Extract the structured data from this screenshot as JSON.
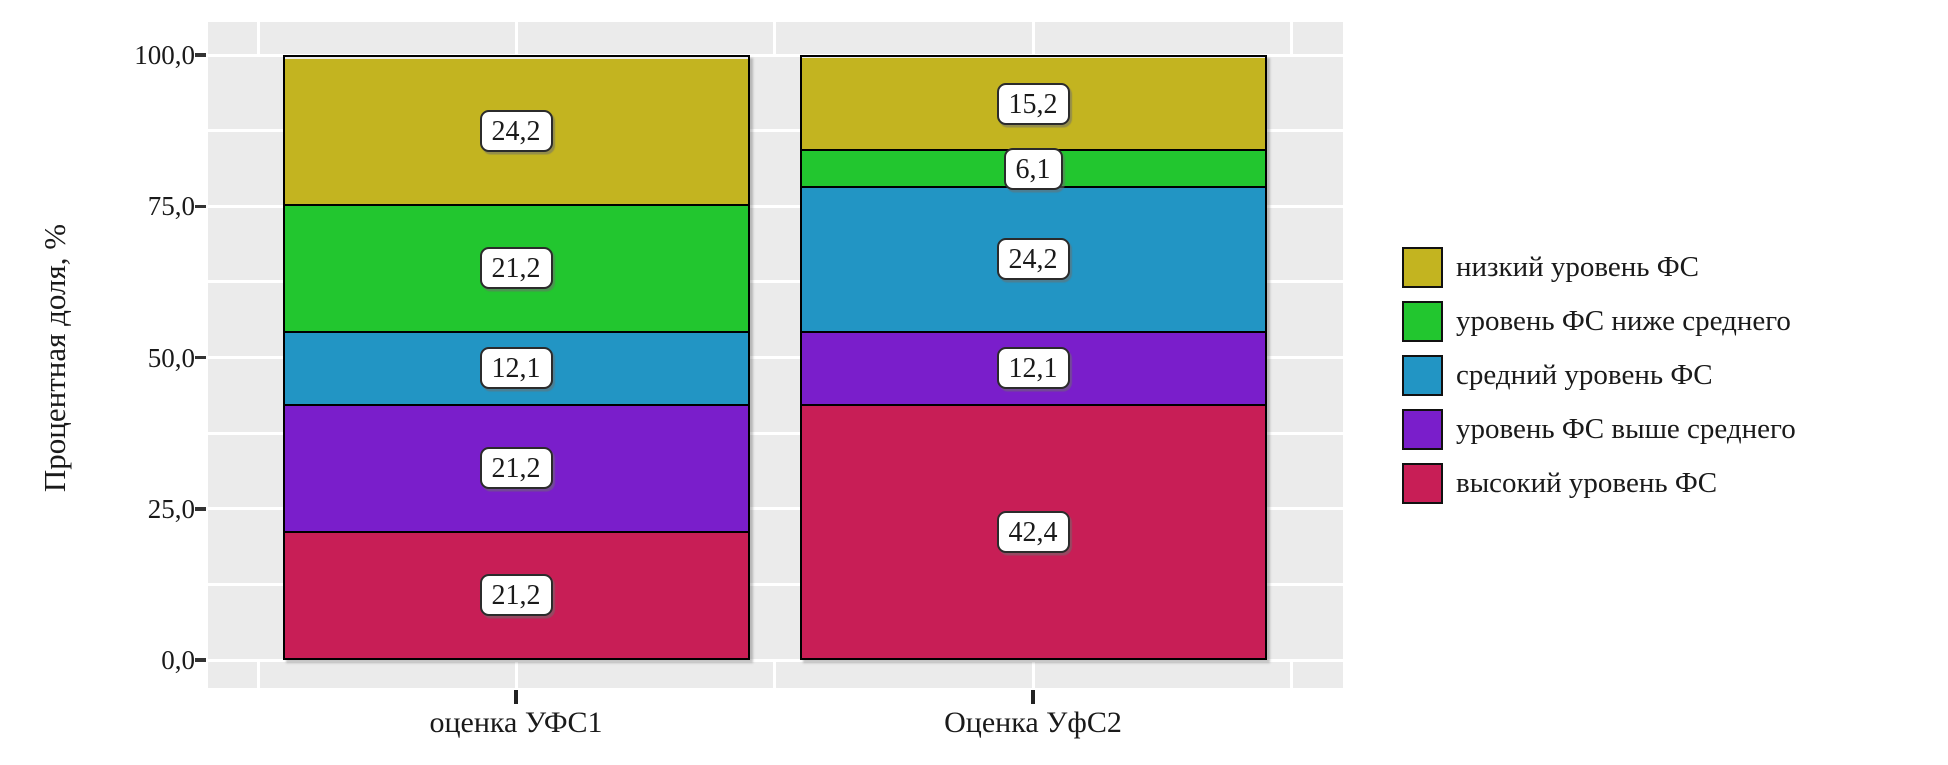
{
  "figure": {
    "background": "#ffffff",
    "plot_background": "#ebebeb",
    "gridline_color": "#ffffff",
    "bar_border_color": "#000000"
  },
  "y_axis": {
    "title": "Процентная доля, %",
    "tick_labels": [
      "0,0",
      "25,0",
      "50,0",
      "75,0",
      "100,0"
    ],
    "tick_values": [
      0,
      25,
      50,
      75,
      100
    ],
    "minor_step": 12.5,
    "range": [
      0,
      100
    ]
  },
  "x_axis": {
    "categories": [
      "оценка УФС1",
      "Оценка УфС2"
    ]
  },
  "legend": {
    "position": "right",
    "items": [
      {
        "label": "низкий уровень ФС",
        "color": "#c3b420"
      },
      {
        "label": "уровень ФС ниже среднего",
        "color": "#22c62f"
      },
      {
        "label": "средний уровень ФС",
        "color": "#2295c4"
      },
      {
        "label": "уровень ФС выше среднего",
        "color": "#7a1ecb"
      },
      {
        "label": "высокий уровень ФС",
        "color": "#c81e56"
      }
    ]
  },
  "chart_data": {
    "type": "bar",
    "stacked": true,
    "percent": true,
    "title": "",
    "xlabel": "",
    "ylabel": "Процентная доля, %",
    "ylim": [
      0,
      100
    ],
    "grid": "white major every 25 and minor every 12.5 on gray panel",
    "legend_position": "right",
    "categories": [
      "оценка УФС1",
      "Оценка УфС2"
    ],
    "series": [
      {
        "name": "высокий уровень ФС",
        "color": "#c81e56",
        "values": [
          21.2,
          42.4
        ],
        "labels": [
          "21,2",
          "42,4"
        ]
      },
      {
        "name": "уровень ФС выше среднего",
        "color": "#7a1ecb",
        "values": [
          21.2,
          12.1
        ],
        "labels": [
          "21,2",
          "12,1"
        ]
      },
      {
        "name": "средний уровень ФС",
        "color": "#2295c4",
        "values": [
          12.1,
          24.2
        ],
        "labels": [
          "12,1",
          "24,2"
        ]
      },
      {
        "name": "уровень ФС ниже среднего",
        "color": "#22c62f",
        "values": [
          21.2,
          6.1
        ],
        "labels": [
          "21,2",
          "6,1"
        ]
      },
      {
        "name": "низкий уровень ФС",
        "color": "#c3b420",
        "values": [
          24.2,
          15.2
        ],
        "labels": [
          "24,2",
          "15,2"
        ]
      }
    ]
  }
}
